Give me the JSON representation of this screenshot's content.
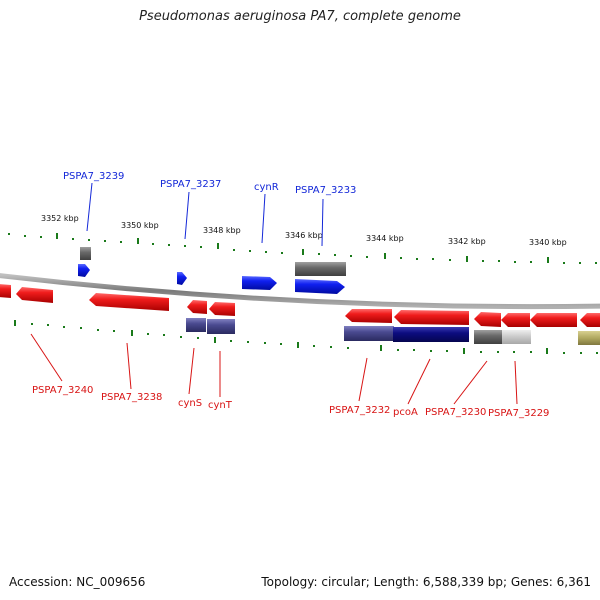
{
  "title": "Pseudomonas aeruginosa PA7, complete genome",
  "footer": {
    "accession": "Accession: NC_009656",
    "summary": "Topology: circular; Length: 6,588,339 bp; Genes: 6,361"
  },
  "colors": {
    "forward_strand": "#0a1ee8",
    "reverse_strand": "#e8081a",
    "ncRNA_gray": "#707070",
    "dark_navy": "#0c0c78",
    "slate_blue": "#4a4a8a",
    "light_gray": "#c8c8c8",
    "olive": "#b0a860",
    "tick_green": "#1a7a1a",
    "backbone": "#8a8a8a"
  },
  "scale_labels": [
    {
      "text": "3352 kbp"
    },
    {
      "text": "3350 kbp"
    },
    {
      "text": "3348 kbp"
    },
    {
      "text": "3346 kbp"
    },
    {
      "text": "3344 kbp"
    },
    {
      "text": "3342 kbp"
    },
    {
      "text": "3340 kbp"
    }
  ],
  "gene_labels_forward": [
    {
      "text": "PSPA7_3239"
    },
    {
      "text": "PSPA7_3237"
    },
    {
      "text": "cynR"
    },
    {
      "text": "PSPA7_3233"
    }
  ],
  "gene_labels_reverse": [
    {
      "text": "PSPA7_3240"
    },
    {
      "text": "PSPA7_3238"
    },
    {
      "text": "cynS"
    },
    {
      "text": "cynT"
    },
    {
      "text": "PSPA7_3232"
    },
    {
      "text": "pcoA"
    },
    {
      "text": "PSPA7_3230"
    },
    {
      "text": "PSPA7_3229"
    }
  ]
}
